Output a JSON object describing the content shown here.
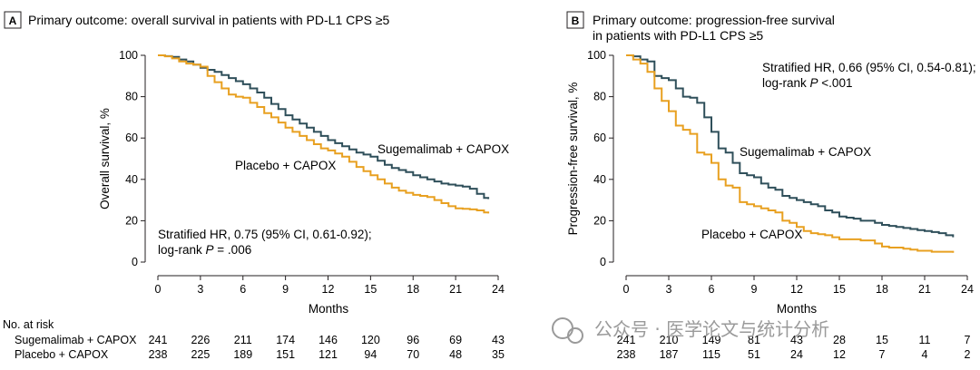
{
  "chart_data": [
    {
      "type": "line",
      "panel": "A",
      "title": "Primary outcome: overall survival in patients with PD-L1 CPS ≥5",
      "xlabel": "Months",
      "ylabel": "Overall survival, %",
      "xlim": [
        0,
        24
      ],
      "ylim": [
        0,
        100
      ],
      "xticks": [
        "0",
        "3",
        "6",
        "9",
        "12",
        "15",
        "18",
        "21",
        "24"
      ],
      "yticks": [
        "0",
        "20",
        "40",
        "60",
        "80",
        "100"
      ],
      "annotation_lines": [
        "Stratified HR, 0.75 (95% CI, 0.61-0.92);",
        "log-rank "
      ],
      "annotation_p_label": "P",
      "annotation_p_value": " = .006",
      "series": [
        {
          "name": "Sugemalimab + CAPOX",
          "color": "#2f4f5a",
          "x": [
            0,
            0.5,
            1,
            1.5,
            2,
            2.5,
            3,
            3.5,
            4,
            4.5,
            5,
            5.5,
            6,
            6.5,
            7,
            7.5,
            8,
            8.5,
            9,
            9.5,
            10,
            10.5,
            11,
            11.5,
            12,
            12.5,
            13,
            13.5,
            14,
            14.5,
            15,
            15.5,
            16,
            16.5,
            17,
            17.5,
            18,
            18.5,
            19,
            19.5,
            20,
            20.5,
            21,
            21.5,
            22,
            22.5,
            23,
            23.3
          ],
          "y": [
            100,
            99.6,
            99.2,
            98,
            97,
            95.5,
            94,
            93,
            92,
            90.5,
            89,
            87.5,
            86,
            84,
            82,
            79.5,
            76.5,
            74,
            71,
            69,
            67,
            65,
            63,
            61,
            59,
            57.5,
            56,
            54.5,
            53,
            52,
            51,
            49,
            47,
            45.5,
            44.5,
            43.5,
            42,
            41,
            40,
            39,
            38,
            37.5,
            37,
            36.5,
            35.5,
            33,
            31,
            30.5
          ]
        },
        {
          "name": "Placebo + CAPOX",
          "color": "#e8a020",
          "x": [
            0,
            0.5,
            1,
            1.5,
            2,
            2.5,
            3,
            3.5,
            4,
            4.5,
            5,
            5.5,
            6,
            6.5,
            7,
            7.5,
            8,
            8.5,
            9,
            9.5,
            10,
            10.5,
            11,
            11.5,
            12,
            12.5,
            13,
            13.5,
            14,
            14.5,
            15,
            15.5,
            16,
            16.5,
            17,
            17.5,
            18,
            18.5,
            19,
            19.5,
            20,
            20.5,
            21,
            21.5,
            22,
            22.5,
            23,
            23.3
          ],
          "y": [
            100,
            99.5,
            98.5,
            97,
            96,
            95.5,
            94.5,
            90,
            87,
            84,
            81,
            80,
            79.5,
            77,
            75,
            72,
            70,
            67.5,
            65,
            63,
            61,
            59,
            57,
            55,
            54,
            52.5,
            51,
            48.5,
            46,
            44,
            42,
            40,
            38,
            36,
            34.5,
            33.5,
            32.5,
            32,
            31.5,
            30,
            28.5,
            27,
            26,
            25.8,
            25.5,
            25,
            24,
            23.5
          ]
        }
      ],
      "at_risk": {
        "header": "No. at risk",
        "rows": [
          {
            "label": "Sugemalimab + CAPOX",
            "values": [
              "241",
              "226",
              "211",
              "174",
              "146",
              "120",
              "96",
              "69",
              "43"
            ]
          },
          {
            "label": "Placebo + CAPOX",
            "values": [
              "238",
              "225",
              "189",
              "151",
              "121",
              "94",
              "70",
              "48",
              "35"
            ]
          }
        ]
      }
    },
    {
      "type": "line",
      "panel": "B",
      "title": "Primary outcome: progression-free survival",
      "title_line2": "in patients with PD-L1 CPS ≥5",
      "xlabel": "Months",
      "ylabel": "Progression-free survival, %",
      "xlim": [
        0,
        24
      ],
      "ylim": [
        0,
        100
      ],
      "xticks": [
        "0",
        "3",
        "6",
        "9",
        "12",
        "15",
        "18",
        "21",
        "24"
      ],
      "yticks": [
        "0",
        "20",
        "40",
        "60",
        "80",
        "100"
      ],
      "annotation_lines": [
        "Stratified HR, 0.66 (95% CI, 0.54-0.81);",
        "log-rank "
      ],
      "annotation_p_label": "P",
      "annotation_p_value": " <.001",
      "series": [
        {
          "name": "Sugemalimab + CAPOX",
          "color": "#2f4f5a",
          "x": [
            0,
            0.5,
            1,
            1.5,
            2,
            2.5,
            3,
            3.5,
            4,
            4.5,
            5,
            5.5,
            6,
            6.5,
            7,
            7.5,
            8,
            8.5,
            9,
            9.5,
            10,
            10.5,
            11,
            11.5,
            12,
            12.5,
            13,
            13.5,
            14,
            14.5,
            15,
            15.5,
            16,
            16.5,
            17,
            17.5,
            18,
            18.5,
            19,
            19.5,
            20,
            20.5,
            21,
            21.5,
            22,
            22.5,
            23
          ],
          "y": [
            100,
            99.5,
            98,
            97,
            90,
            89,
            88,
            84,
            80,
            79.5,
            77,
            70,
            63,
            55,
            53,
            48,
            43,
            42,
            41,
            38,
            36,
            35,
            32,
            31,
            30,
            29,
            28,
            27,
            25,
            24,
            22,
            21.5,
            21,
            20,
            20,
            19,
            18,
            17.5,
            17,
            16.5,
            16,
            15.5,
            15,
            14.5,
            14,
            13,
            12
          ]
        },
        {
          "name": "Placebo + CAPOX",
          "color": "#e8a020",
          "x": [
            0,
            0.5,
            1,
            1.5,
            2,
            2.5,
            3,
            3.5,
            4,
            4.5,
            5,
            5.5,
            6,
            6.5,
            7,
            7.5,
            8,
            8.5,
            9,
            9.5,
            10,
            10.5,
            11,
            11.5,
            12,
            12.5,
            13,
            13.5,
            14,
            14.5,
            15,
            15.5,
            16,
            16.5,
            17,
            17.5,
            18,
            18.5,
            19,
            19.5,
            20,
            20.5,
            21,
            21.5,
            22,
            22.5,
            23
          ],
          "y": [
            100,
            98,
            96,
            92,
            84,
            78,
            73,
            66,
            64,
            62,
            53,
            52,
            48,
            40,
            37,
            36,
            29,
            28,
            27,
            26,
            25,
            24,
            20,
            19,
            17,
            15,
            14,
            13.5,
            13,
            12,
            11,
            11,
            11,
            10.5,
            10.5,
            9,
            7.5,
            7,
            7,
            6.5,
            6,
            5.5,
            5.5,
            5,
            5,
            5,
            4.5
          ]
        }
      ],
      "at_risk": {
        "rows": [
          {
            "label": "",
            "values": [
              "241",
              "210",
              "149",
              "81",
              "43",
              "28",
              "15",
              "11",
              "7"
            ]
          },
          {
            "label": "",
            "values": [
              "238",
              "187",
              "115",
              "51",
              "24",
              "12",
              "7",
              "4",
              "2"
            ]
          }
        ]
      }
    }
  ],
  "watermark": "公众号 · 医学论文与统计分析"
}
